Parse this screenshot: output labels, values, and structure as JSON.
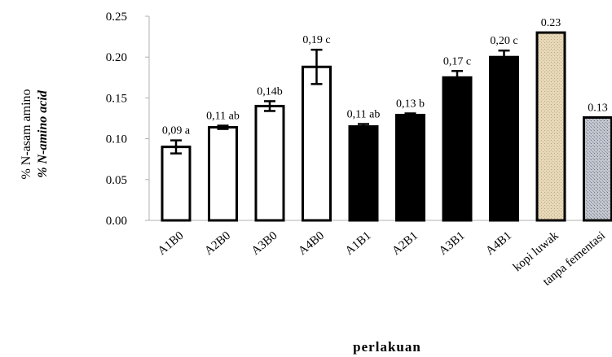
{
  "chart_data": {
    "type": "bar",
    "categories": [
      "A1B0",
      "A2B0",
      "A3B0",
      "A4B0",
      "A1B1",
      "A2B1",
      "A3B1",
      "A4B1",
      "kopi luwak",
      "tanpa fementasi"
    ],
    "values": [
      0.09,
      0.114,
      0.14,
      0.188,
      0.115,
      0.129,
      0.175,
      0.2,
      0.23,
      0.126
    ],
    "errors": [
      0.008,
      0.002,
      0.006,
      0.021,
      0.003,
      0.002,
      0.008,
      0.008,
      0,
      0
    ],
    "labels": [
      "0,09 a",
      "0,11 ab",
      "0,14b",
      "0,19 c",
      "0,11 ab",
      "0,13 b",
      "0,17 c",
      "0,20 c",
      "0.23",
      "0.13"
    ],
    "fills": [
      "white",
      "white",
      "white",
      "white",
      "black",
      "black",
      "black",
      "black",
      "tan-pattern",
      "gray-pattern"
    ],
    "xlabel": "perlakuan",
    "ylabel_line1": "% N-asam amino",
    "ylabel_line2": "% N-amino acid",
    "ylim": [
      0,
      0.25
    ],
    "yticks": [
      "0.00",
      "0.05",
      "0.10",
      "0.15",
      "0.20",
      "0.25"
    ],
    "grid": false,
    "colors": {
      "white_bar": "#ffffff",
      "black_bar": "#000000",
      "tan": "#e6d8b8",
      "gray": "#b8bcc4"
    }
  }
}
